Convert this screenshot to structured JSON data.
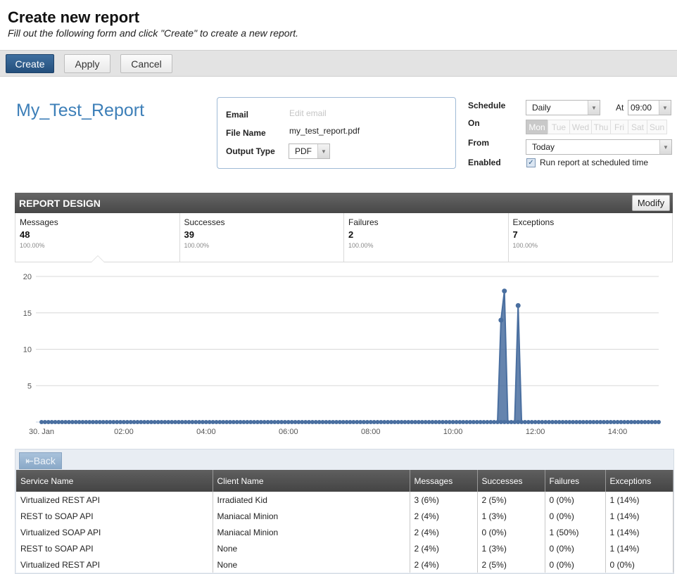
{
  "header": {
    "title": "Create new report",
    "subtitle": "Fill out the following form and click \"Create\" to create a new report."
  },
  "toolbar": {
    "create_label": "Create",
    "apply_label": "Apply",
    "cancel_label": "Cancel"
  },
  "report": {
    "name": "My_Test_Report"
  },
  "form": {
    "email_label": "Email",
    "email_placeholder": "Edit email",
    "file_name_label": "File Name",
    "file_name_value": "my_test_report.pdf",
    "output_type_label": "Output Type",
    "output_type_value": "PDF"
  },
  "schedule": {
    "schedule_label": "Schedule",
    "frequency": "Daily",
    "at_label": "At",
    "time": "09:00",
    "on_label": "On",
    "days": [
      "Mon",
      "Tue",
      "Wed",
      "Thu",
      "Fri",
      "Sat",
      "Sun"
    ],
    "from_label": "From",
    "from_value": "Today",
    "enabled_label": "Enabled",
    "enabled_text": "Run report at scheduled time",
    "enabled_checked": true
  },
  "design": {
    "title": "REPORT DESIGN",
    "modify_label": "Modify",
    "stats": [
      {
        "label": "Messages",
        "value": "48",
        "percent": "100.00%"
      },
      {
        "label": "Successes",
        "value": "39",
        "percent": "100.00%"
      },
      {
        "label": "Failures",
        "value": "2",
        "percent": "100.00%"
      },
      {
        "label": "Exceptions",
        "value": "7",
        "percent": "100.00%"
      }
    ]
  },
  "chart_data": {
    "type": "area",
    "title": "",
    "xlabel": "",
    "ylabel": "",
    "ylim": [
      0,
      20
    ],
    "xlim": [
      "00:00",
      "15:00"
    ],
    "y_ticks": [
      5,
      10,
      15,
      20
    ],
    "x_tick_labels": [
      "30. Jan",
      "02:00",
      "04:00",
      "06:00",
      "08:00",
      "10:00",
      "12:00",
      "14:00"
    ],
    "grid": true,
    "series": [
      {
        "color": "#4a6fa0",
        "x": [
          "00:00",
          "11:05",
          "11:10",
          "11:15",
          "11:20",
          "11:25",
          "11:30",
          "11:35",
          "11:40",
          "11:45",
          "11:50",
          "15:00"
        ],
        "values": [
          0,
          0,
          14,
          18,
          0,
          0,
          0,
          16,
          0,
          0,
          0,
          0
        ]
      }
    ]
  },
  "table": {
    "back_label": "Back",
    "columns": [
      "Service Name",
      "Client Name",
      "Messages",
      "Successes",
      "Failures",
      "Exceptions"
    ],
    "rows": [
      [
        "Virtualized REST API",
        "Irradiated Kid",
        "3 (6%)",
        "2 (5%)",
        "0 (0%)",
        "1 (14%)"
      ],
      [
        "REST to SOAP API",
        "Maniacal Minion",
        "2 (4%)",
        "1 (3%)",
        "0 (0%)",
        "1 (14%)"
      ],
      [
        "Virtualized SOAP API",
        "Maniacal Minion",
        "2 (4%)",
        "0 (0%)",
        "1 (50%)",
        "1 (14%)"
      ],
      [
        "REST to SOAP API",
        "None",
        "2 (4%)",
        "1 (3%)",
        "0 (0%)",
        "1 (14%)"
      ],
      [
        "Virtualized REST API",
        "None",
        "2 (4%)",
        "2 (5%)",
        "0 (0%)",
        "0 (0%)"
      ]
    ]
  }
}
